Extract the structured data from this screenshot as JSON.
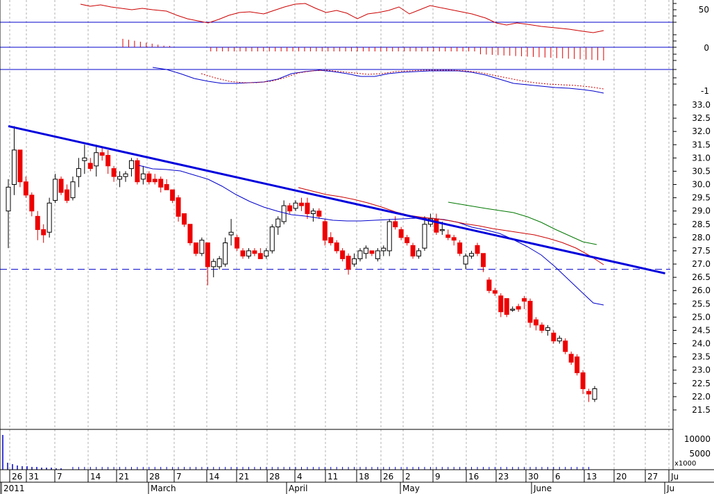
{
  "chart_data": {
    "type": "candlestick",
    "title": "",
    "x_tick_labels": [
      "26",
      "31",
      "7",
      "14",
      "21",
      "28",
      "7",
      "14",
      "21",
      "28",
      "4",
      "11",
      "18",
      "26",
      "2",
      "9",
      "16",
      "23",
      "30",
      "6",
      "13",
      "20",
      "27",
      "Ju"
    ],
    "x_month_labels": [
      "2011",
      "March",
      "April",
      "May",
      "June",
      "Ju"
    ],
    "price_axis": {
      "min": 21.5,
      "max": 33.0,
      "tick_labels": [
        "33.0",
        "32.5",
        "32.0",
        "31.5",
        "31.0",
        "30.5",
        "30.0",
        "29.5",
        "29.0",
        "28.5",
        "28.0",
        "27.5",
        "27.0",
        "26.5",
        "26.0",
        "25.5",
        "25.0",
        "24.5",
        "24.0",
        "23.5",
        "23.0",
        "22.5",
        "22.0",
        "21.5"
      ]
    },
    "indicator_axis_labels": [
      "50",
      "0",
      "-1"
    ],
    "volume_axis": {
      "tick_labels": [
        "10000",
        "5000"
      ],
      "unit_label": "x1000"
    },
    "support_level": 26.8,
    "trendline": {
      "start": [
        0,
        32.2
      ],
      "end": [
        99,
        26.65
      ]
    },
    "candles": [
      [
        29.0,
        30.2,
        27.6,
        29.9
      ],
      [
        30.0,
        32.2,
        29.6,
        31.3
      ],
      [
        31.3,
        31.3,
        29.9,
        30.1
      ],
      [
        30.1,
        30.3,
        29.5,
        29.6
      ],
      [
        29.6,
        29.7,
        28.8,
        29.0
      ],
      [
        28.8,
        29.0,
        27.9,
        28.3
      ],
      [
        28.3,
        28.5,
        27.8,
        28.1
      ],
      [
        28.2,
        29.5,
        28.0,
        29.3
      ],
      [
        29.4,
        30.4,
        29.3,
        30.2
      ],
      [
        30.2,
        30.3,
        29.6,
        29.7
      ],
      [
        29.8,
        30.0,
        29.3,
        29.4
      ],
      [
        29.5,
        30.3,
        29.4,
        30.1
      ],
      [
        30.3,
        31.0,
        29.9,
        30.6
      ],
      [
        30.9,
        31.5,
        30.4,
        31.0
      ],
      [
        30.8,
        31.0,
        30.5,
        30.6
      ],
      [
        30.7,
        31.5,
        30.3,
        31.2
      ],
      [
        31.2,
        31.4,
        30.9,
        31.1
      ],
      [
        31.1,
        31.3,
        30.4,
        30.7
      ],
      [
        30.6,
        30.7,
        30.1,
        30.3
      ],
      [
        30.2,
        30.5,
        29.9,
        30.3
      ],
      [
        30.3,
        30.5,
        30.1,
        30.4
      ],
      [
        30.6,
        31.0,
        30.3,
        30.9
      ],
      [
        30.9,
        31.0,
        30.0,
        30.1
      ],
      [
        30.2,
        30.7,
        30.0,
        30.4
      ],
      [
        30.4,
        30.5,
        30.0,
        30.1
      ],
      [
        30.2,
        30.4,
        30.0,
        30.1
      ],
      [
        30.2,
        30.3,
        29.7,
        29.9
      ],
      [
        30.0,
        30.2,
        29.8,
        29.8
      ],
      [
        29.8,
        29.8,
        29.3,
        29.4
      ],
      [
        29.5,
        29.6,
        28.6,
        28.8
      ],
      [
        28.9,
        28.9,
        28.4,
        28.5
      ],
      [
        28.5,
        28.5,
        27.7,
        27.8
      ],
      [
        27.8,
        27.8,
        27.3,
        27.4
      ],
      [
        27.4,
        28.0,
        27.3,
        27.9
      ],
      [
        27.8,
        27.8,
        26.2,
        26.9
      ],
      [
        26.9,
        27.2,
        26.5,
        27.1
      ],
      [
        26.9,
        27.3,
        26.8,
        27.2
      ],
      [
        27.0,
        28.0,
        26.9,
        27.8
      ],
      [
        28.1,
        28.7,
        27.7,
        28.2
      ],
      [
        28.0,
        28.1,
        27.5,
        27.6
      ],
      [
        27.5,
        27.6,
        27.2,
        27.3
      ],
      [
        27.3,
        27.6,
        27.2,
        27.5
      ],
      [
        27.5,
        27.6,
        27.3,
        27.4
      ],
      [
        27.4,
        27.6,
        27.2,
        27.2
      ],
      [
        27.3,
        27.6,
        27.2,
        27.5
      ],
      [
        27.5,
        28.5,
        27.4,
        28.4
      ],
      [
        28.4,
        28.8,
        28.1,
        28.7
      ],
      [
        28.6,
        29.4,
        28.5,
        29.2
      ],
      [
        29.2,
        29.3,
        28.9,
        29.0
      ],
      [
        29.1,
        29.4,
        29.0,
        29.3
      ],
      [
        29.3,
        29.5,
        29.0,
        29.2
      ],
      [
        29.3,
        29.5,
        28.7,
        28.9
      ],
      [
        28.9,
        29.1,
        28.6,
        29.0
      ],
      [
        29.0,
        29.1,
        28.7,
        28.8
      ],
      [
        28.6,
        28.7,
        27.7,
        27.9
      ],
      [
        28.0,
        28.2,
        27.7,
        27.8
      ],
      [
        27.8,
        27.9,
        27.4,
        27.5
      ],
      [
        27.5,
        27.6,
        27.1,
        27.2
      ],
      [
        27.3,
        27.4,
        26.6,
        26.8
      ],
      [
        27.0,
        27.4,
        26.9,
        27.2
      ],
      [
        27.2,
        27.6,
        27.1,
        27.5
      ],
      [
        27.4,
        27.7,
        27.2,
        27.6
      ],
      [
        27.5,
        27.5,
        27.3,
        27.4
      ],
      [
        27.2,
        27.6,
        27.1,
        27.5
      ],
      [
        27.5,
        27.7,
        27.3,
        27.6
      ],
      [
        27.5,
        28.7,
        27.3,
        28.6
      ],
      [
        28.6,
        28.8,
        28.3,
        28.4
      ],
      [
        28.3,
        28.4,
        27.9,
        28.0
      ],
      [
        28.0,
        28.1,
        27.7,
        27.8
      ],
      [
        27.7,
        27.8,
        27.2,
        27.3
      ],
      [
        27.3,
        27.6,
        27.2,
        27.5
      ],
      [
        27.6,
        28.8,
        27.5,
        28.5
      ],
      [
        28.5,
        28.9,
        28.4,
        28.7
      ],
      [
        28.7,
        28.9,
        28.1,
        28.2
      ],
      [
        28.3,
        28.6,
        28.1,
        28.3
      ],
      [
        28.1,
        28.3,
        27.9,
        28.0
      ],
      [
        28.0,
        28.1,
        27.7,
        27.9
      ],
      [
        27.8,
        27.9,
        27.3,
        27.4
      ],
      [
        27.0,
        27.4,
        26.8,
        27.3
      ],
      [
        27.3,
        27.5,
        27.2,
        27.4
      ],
      [
        27.7,
        27.8,
        27.3,
        27.4
      ],
      [
        27.4,
        27.4,
        26.7,
        26.9
      ],
      [
        26.4,
        26.5,
        25.9,
        26.0
      ],
      [
        26.0,
        26.1,
        25.8,
        25.9
      ],
      [
        25.8,
        25.9,
        25.0,
        25.2
      ],
      [
        25.7,
        25.7,
        25.0,
        25.1
      ],
      [
        25.3,
        25.4,
        25.2,
        25.3
      ],
      [
        25.4,
        25.5,
        25.2,
        25.3
      ],
      [
        25.7,
        25.8,
        25.3,
        25.6
      ],
      [
        25.6,
        25.7,
        24.6,
        24.8
      ],
      [
        24.9,
        25.0,
        24.5,
        24.7
      ],
      [
        24.7,
        24.8,
        24.4,
        24.5
      ],
      [
        24.5,
        24.7,
        24.3,
        24.6
      ],
      [
        24.4,
        24.5,
        24.0,
        24.1
      ],
      [
        24.1,
        24.3,
        24.0,
        24.2
      ],
      [
        24.1,
        24.2,
        23.6,
        23.7
      ],
      [
        23.6,
        23.7,
        23.2,
        23.3
      ],
      [
        23.5,
        23.6,
        22.8,
        22.9
      ],
      [
        22.9,
        23.0,
        22.1,
        22.3
      ],
      [
        22.2,
        22.3,
        21.8,
        22.1
      ],
      [
        21.9,
        22.4,
        21.8,
        22.3
      ]
    ]
  },
  "axes": {
    "x_label": "",
    "y_label": ""
  }
}
